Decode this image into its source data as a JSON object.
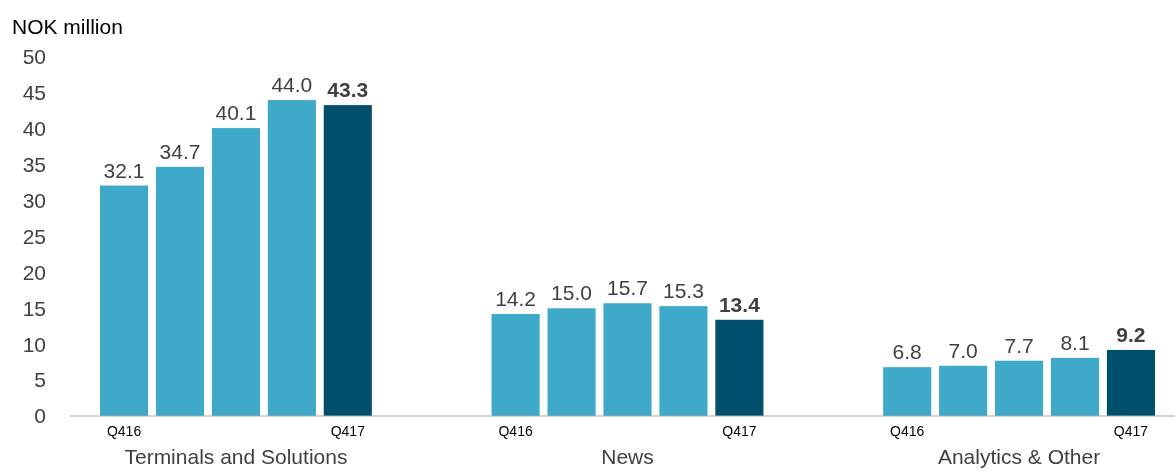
{
  "chart_data": {
    "type": "bar",
    "ylabel": "NOK million",
    "categories": [
      "Q416",
      null,
      null,
      null,
      "Q417",
      null,
      null,
      "Q416",
      null,
      null,
      null,
      "Q417",
      null,
      null,
      "Q416",
      null,
      null,
      null,
      "Q417"
    ],
    "values": [
      32.1,
      34.7,
      40.1,
      44.0,
      43.3,
      null,
      null,
      14.2,
      15.0,
      15.7,
      15.3,
      13.4,
      null,
      null,
      6.8,
      7.0,
      7.7,
      8.1,
      9.2
    ],
    "colors": [
      "#3fa9c9",
      "#3fa9c9",
      "#3fa9c9",
      "#3fa9c9",
      "#004f6b",
      null,
      null,
      "#3fa9c9",
      "#3fa9c9",
      "#3fa9c9",
      "#3fa9c9",
      "#004f6b",
      null,
      null,
      "#3fa9c9",
      "#3fa9c9",
      "#3fa9c9",
      "#3fa9c9",
      "#004f6b"
    ],
    "ylim": [
      0,
      50
    ],
    "yticks": [
      0,
      5,
      10,
      15,
      20,
      25,
      30,
      35,
      40,
      45,
      50
    ],
    "grid": false,
    "value_labels": [
      "32.1",
      "34.7",
      "40.1",
      "44.0",
      "43.3",
      null,
      null,
      "14.2",
      "15.0",
      "15.7",
      "15.3",
      "13.4",
      null,
      null,
      "6.8",
      "7.0",
      "7.7",
      "8.1",
      "9.2"
    ],
    "annotations": [
      "Terminals and Solutions",
      "News",
      "Analytics & Other"
    ]
  }
}
